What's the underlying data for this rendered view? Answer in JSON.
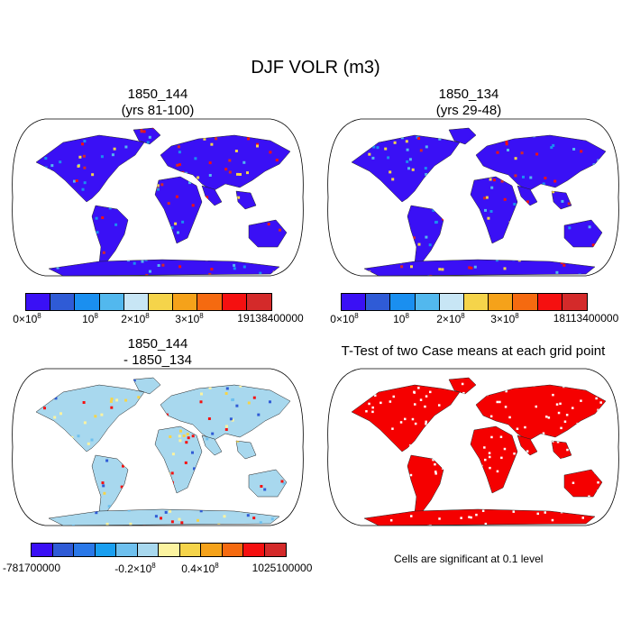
{
  "figure": {
    "title": "DJF VOLR (m3)"
  },
  "panels": [
    {
      "id": "p1",
      "title1": "1850_144",
      "title2": "(yrs 81-100)",
      "fill": "#3a10f5",
      "land_color": "#3a10f5",
      "colorbar": {
        "colors": [
          "#3a10f5",
          "#2f5bd6",
          "#1a8ff0",
          "#52b8ee",
          "#c8e6f5",
          "#f5d44a",
          "#f5a21a",
          "#f56a10",
          "#f51010",
          "#d42a2a"
        ],
        "labels": [
          {
            "base": "0×10",
            "exp": "8"
          },
          {
            "base": "10",
            "exp": "8"
          },
          {
            "base": "2×10",
            "exp": "8"
          },
          {
            "base": "3×10",
            "exp": "8"
          },
          {
            "base": "19138400000",
            "exp": ""
          }
        ]
      }
    },
    {
      "id": "p2",
      "title1": "1850_134",
      "title2": "(yrs 29-48)",
      "land_color": "#3a10f5",
      "colorbar": {
        "colors": [
          "#3a10f5",
          "#2f5bd6",
          "#1a8ff0",
          "#52b8ee",
          "#c8e6f5",
          "#f5d44a",
          "#f5a21a",
          "#f56a10",
          "#f51010",
          "#d42a2a"
        ],
        "labels": [
          {
            "base": "0×10",
            "exp": "8"
          },
          {
            "base": "10",
            "exp": "8"
          },
          {
            "base": "2×10",
            "exp": "8"
          },
          {
            "base": "3×10",
            "exp": "8"
          },
          {
            "base": "18113400000",
            "exp": ""
          }
        ]
      }
    },
    {
      "id": "p3",
      "title1": "1850_144",
      "title2": "- 1850_134",
      "land_color": "#a8d8ee",
      "colorbar": {
        "colors": [
          "#3a10f5",
          "#2f5bd6",
          "#2a78e8",
          "#1a9ff0",
          "#6ec0ee",
          "#a8d8ee",
          "#fbf3a0",
          "#f5d44a",
          "#f5a21a",
          "#f56a10",
          "#f51010",
          "#d42a2a"
        ],
        "labels": [
          {
            "base": "-781700000",
            "exp": ""
          },
          {
            "base": "-0.2×10",
            "exp": "8"
          },
          {
            "base": "0.4×10",
            "exp": "8"
          },
          {
            "base": "1025100000",
            "exp": ""
          }
        ]
      }
    },
    {
      "id": "p4",
      "title1": "T-Test of two Case means at each grid point",
      "title2": "",
      "land_color": "#f50000",
      "note": "Cells are significant at 0.1 level"
    }
  ]
}
